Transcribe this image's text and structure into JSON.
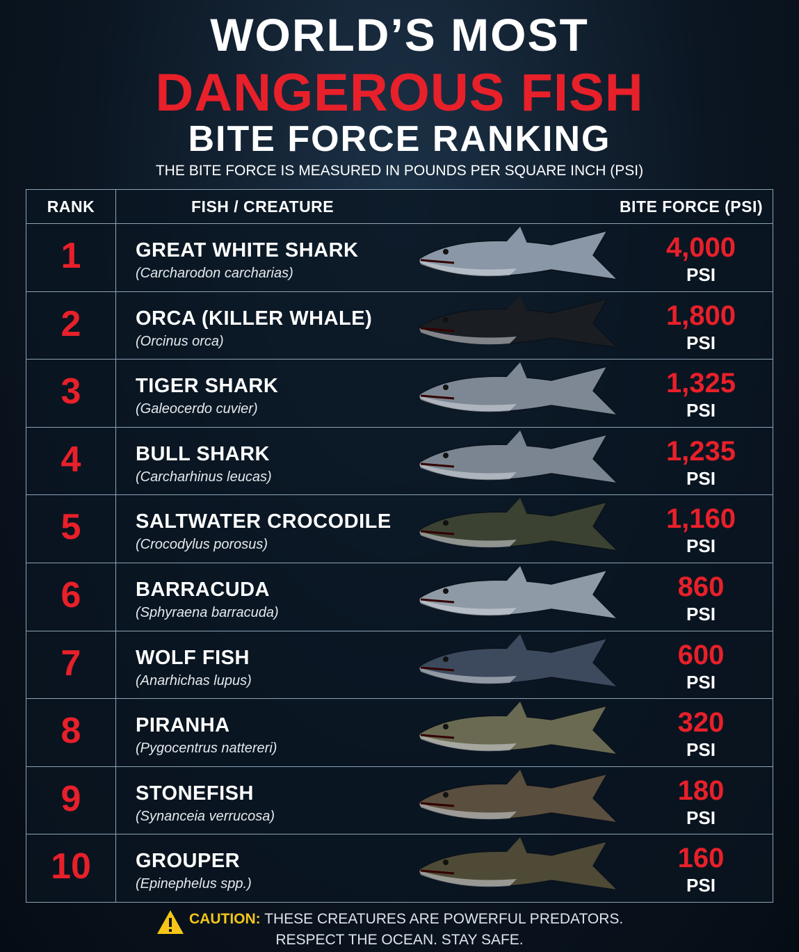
{
  "header": {
    "title_line1": "WORLD’S MOST",
    "title_line2": "DANGEROUS FISH",
    "title_line3": "BITE FORCE RANKING",
    "subtitle": "THE BITE FORCE IS MEASURED IN POUNDS PER SQUARE INCH (PSI)"
  },
  "table": {
    "columns": [
      "RANK",
      "FISH / CREATURE",
      "BITE FORCE (PSI)"
    ],
    "rows": [
      {
        "rank": "1",
        "name": "GREAT WHITE SHARK",
        "scientific": "(Carcharodon carcharias)",
        "bite": "4,000",
        "unit": "PSI"
      },
      {
        "rank": "2",
        "name": "ORCA (KILLER WHALE)",
        "scientific": "(Orcinus orca)",
        "bite": "1,800",
        "unit": "PSI"
      },
      {
        "rank": "3",
        "name": "TIGER SHARK",
        "scientific": "(Galeocerdo cuvier)",
        "bite": "1,325",
        "unit": "PSI"
      },
      {
        "rank": "4",
        "name": "BULL SHARK",
        "scientific": "(Carcharhinus leucas)",
        "bite": "1,235",
        "unit": "PSI"
      },
      {
        "rank": "5",
        "name": "SALTWATER CROCODILE",
        "scientific": "(Crocodylus porosus)",
        "bite": "1,160",
        "unit": "PSI"
      },
      {
        "rank": "6",
        "name": "BARRACUDA",
        "scientific": "(Sphyraena barracuda)",
        "bite": "860",
        "unit": "PSI"
      },
      {
        "rank": "7",
        "name": "WOLF FISH",
        "scientific": "(Anarhichas lupus)",
        "bite": "600",
        "unit": "PSI"
      },
      {
        "rank": "8",
        "name": "PIRANHA",
        "scientific": "(Pygocentrus nattereri)",
        "bite": "320",
        "unit": "PSI"
      },
      {
        "rank": "9",
        "name": "STONEFISH",
        "scientific": "(Synanceia verrucosa)",
        "bite": "180",
        "unit": "PSI"
      },
      {
        "rank": "10",
        "name": "GROUPER",
        "scientific": "(Epinephelus spp.)",
        "bite": "160",
        "unit": "PSI"
      }
    ]
  },
  "footer": {
    "caution_label": "CAUTION:",
    "line1": "THESE CREATURES ARE POWERFUL PREDATORS.",
    "line2": "RESPECT THE OCEAN. STAY SAFE."
  }
}
